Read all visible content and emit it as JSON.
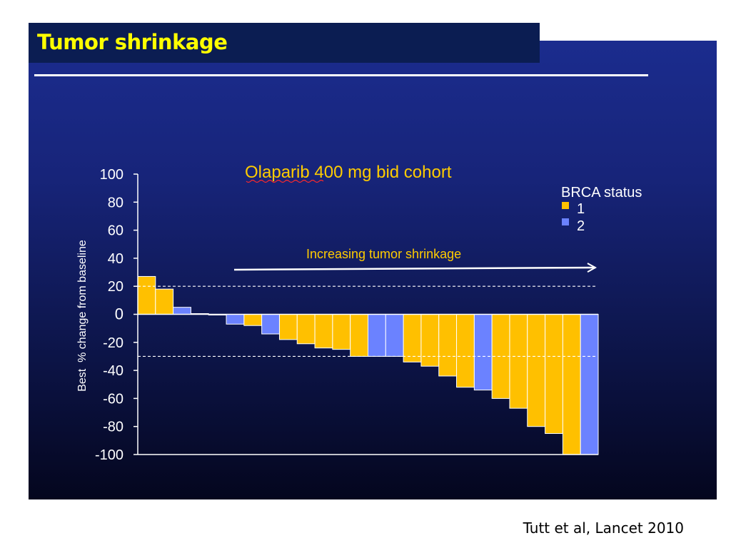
{
  "slide": {
    "title": "Tumor shrinkage",
    "citation": "Tutt et al, Lancet 2010"
  },
  "colors": {
    "brca1": "#ffc000",
    "brca2": "#6b82ff",
    "title_text": "#ffff00",
    "chart_title_text": "#ffcc00",
    "annotation_text": "#ffcc00"
  },
  "chart_data": {
    "type": "bar",
    "title": "Olaparib 400 mg bid cohort",
    "ylabel": "Best  % change from baseline",
    "xlabel": "",
    "ylim": [
      -100,
      100
    ],
    "yticks": [
      100,
      80,
      60,
      40,
      20,
      0,
      -20,
      -40,
      -60,
      -80,
      -100
    ],
    "grid": false,
    "reference_lines": [
      20,
      -30
    ],
    "legend": {
      "title": "BRCA status",
      "placement": "top-right",
      "entries": [
        {
          "label": "1",
          "color": "#ffc000"
        },
        {
          "label": "2",
          "color": "#6b82ff"
        }
      ]
    },
    "annotation": {
      "text": "Increasing tumor shrinkage",
      "arrow": "right"
    },
    "bars": [
      {
        "value": 27,
        "brca": "1"
      },
      {
        "value": 18,
        "brca": "1"
      },
      {
        "value": 5,
        "brca": "2"
      },
      {
        "value": 0.5,
        "brca": "2"
      },
      {
        "value": -0.5,
        "brca": "2"
      },
      {
        "value": -7,
        "brca": "2"
      },
      {
        "value": -8,
        "brca": "1"
      },
      {
        "value": -14,
        "brca": "2"
      },
      {
        "value": -18,
        "brca": "1"
      },
      {
        "value": -21,
        "brca": "1"
      },
      {
        "value": -24,
        "brca": "1"
      },
      {
        "value": -25,
        "brca": "1"
      },
      {
        "value": -30,
        "brca": "1"
      },
      {
        "value": -30,
        "brca": "2"
      },
      {
        "value": -30,
        "brca": "2"
      },
      {
        "value": -34,
        "brca": "1"
      },
      {
        "value": -37,
        "brca": "1"
      },
      {
        "value": -44,
        "brca": "1"
      },
      {
        "value": -52,
        "brca": "1"
      },
      {
        "value": -54,
        "brca": "2"
      },
      {
        "value": -60,
        "brca": "1"
      },
      {
        "value": -67,
        "brca": "1"
      },
      {
        "value": -80,
        "brca": "1"
      },
      {
        "value": -85,
        "brca": "1"
      },
      {
        "value": -100,
        "brca": "1"
      },
      {
        "value": -100,
        "brca": "2"
      }
    ]
  }
}
